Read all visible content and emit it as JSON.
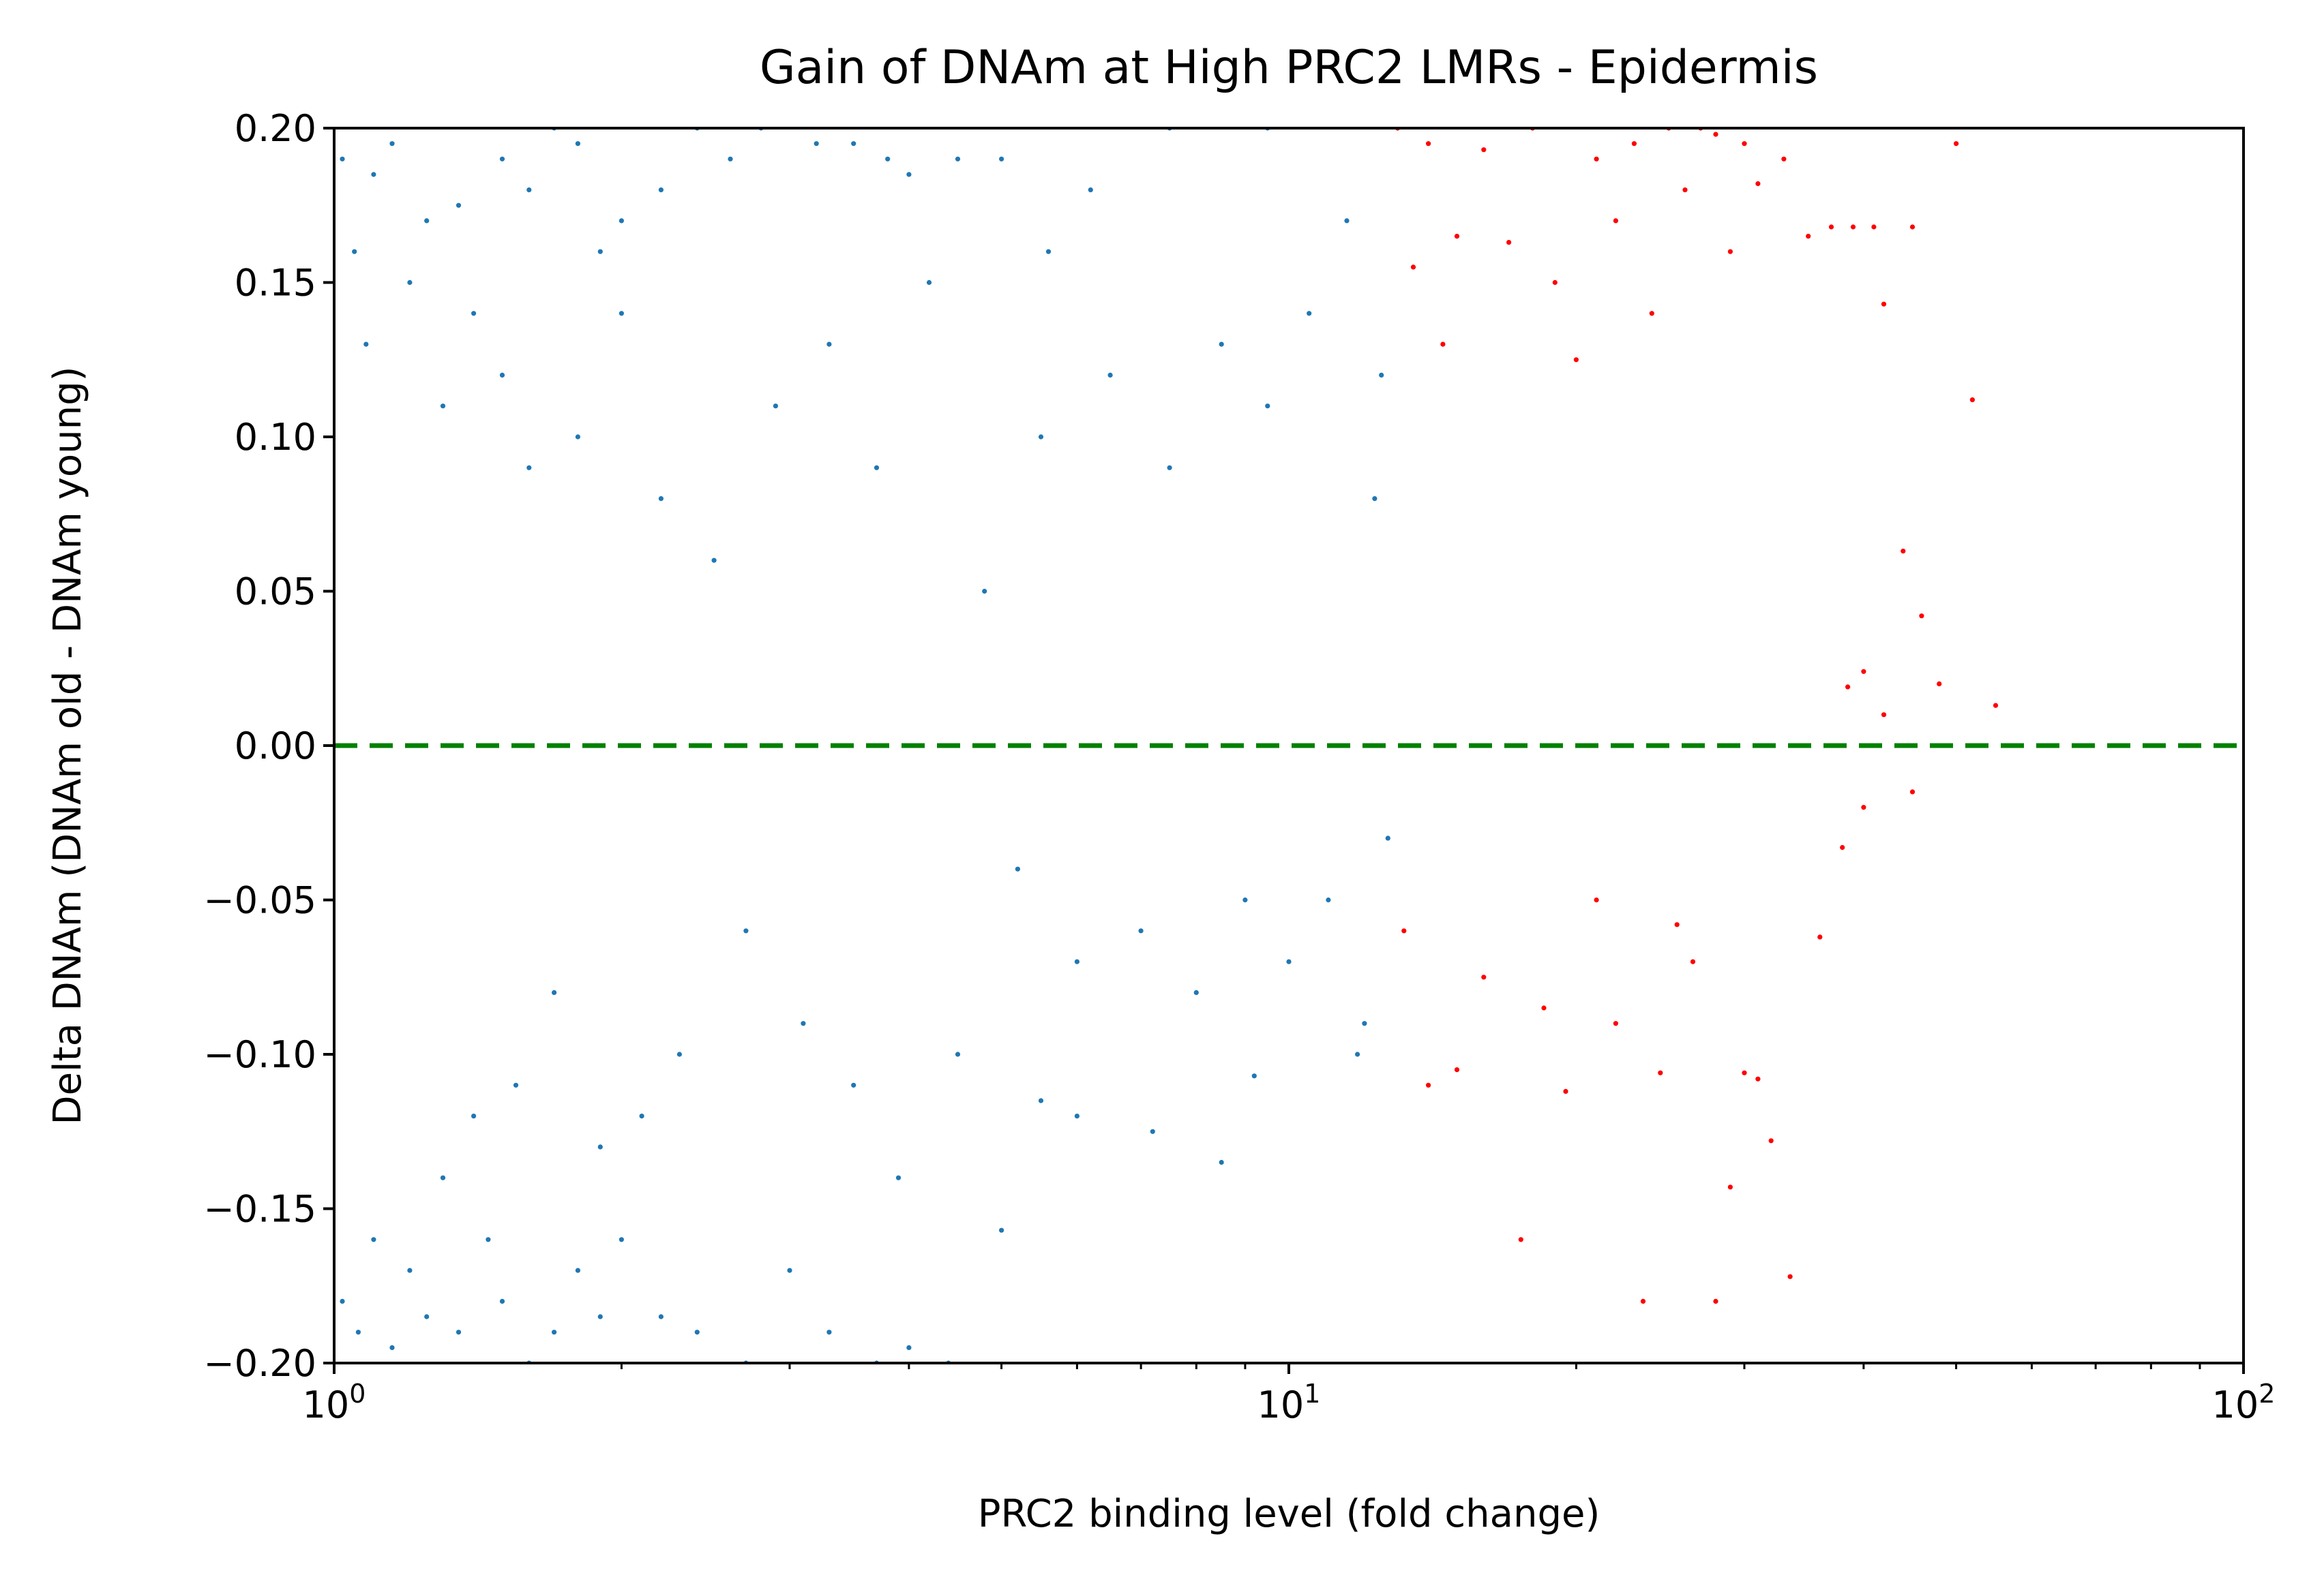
{
  "chart_data": {
    "type": "scatter",
    "title": "Gain of DNAm at High PRC2 LMRs - Epidermis",
    "xlabel": "PRC2 binding level (fold change)",
    "ylabel": "Delta DNAm (DNAm old - DNAm young)",
    "x_scale": "log",
    "xlim": [
      1,
      100
    ],
    "ylim": [
      -0.2,
      0.2
    ],
    "x_ticks": [
      {
        "value": 1,
        "base": "10",
        "exp": "0"
      },
      {
        "value": 10,
        "base": "10",
        "exp": "1"
      },
      {
        "value": 100,
        "base": "10",
        "exp": "2"
      }
    ],
    "y_ticks": [
      {
        "value": 0.2,
        "label": "0.20"
      },
      {
        "value": 0.15,
        "label": "0.15"
      },
      {
        "value": 0.1,
        "label": "0.10"
      },
      {
        "value": 0.05,
        "label": "0.05"
      },
      {
        "value": 0.0,
        "label": "0.00"
      },
      {
        "value": -0.05,
        "label": "−0.05"
      },
      {
        "value": -0.1,
        "label": "−0.10"
      },
      {
        "value": -0.15,
        "label": "−0.15"
      },
      {
        "value": -0.2,
        "label": "−0.20"
      }
    ],
    "grid": false,
    "legend": "none",
    "reference_line": {
      "y": 0.0,
      "style": "dashed",
      "color": "#008000"
    },
    "series": [
      {
        "color": "#1f77b4",
        "x_range": [
          1.0,
          12.8
        ],
        "points": [
          [
            1.02,
            0.19
          ],
          [
            1.05,
            0.16
          ],
          [
            1.08,
            0.13
          ],
          [
            1.1,
            0.185
          ],
          [
            1.15,
            0.195
          ],
          [
            1.2,
            0.15
          ],
          [
            1.25,
            0.17
          ],
          [
            1.3,
            0.11
          ],
          [
            1.35,
            0.175
          ],
          [
            1.4,
            0.14
          ],
          [
            1.02,
            -0.18
          ],
          [
            1.06,
            -0.19
          ],
          [
            1.1,
            -0.16
          ],
          [
            1.15,
            -0.195
          ],
          [
            1.2,
            -0.17
          ],
          [
            1.25,
            -0.185
          ],
          [
            1.3,
            -0.14
          ],
          [
            1.35,
            -0.19
          ],
          [
            1.4,
            -0.12
          ],
          [
            1.45,
            -0.16
          ],
          [
            1.5,
            0.12
          ],
          [
            1.55,
            -0.11
          ],
          [
            1.6,
            0.09
          ],
          [
            1.7,
            -0.08
          ],
          [
            1.8,
            0.1
          ],
          [
            1.9,
            -0.13
          ],
          [
            2.0,
            0.14
          ],
          [
            2.1,
            -0.12
          ],
          [
            2.2,
            0.08
          ],
          [
            2.3,
            -0.1
          ],
          [
            1.5,
            0.19
          ],
          [
            1.6,
            0.18
          ],
          [
            1.7,
            0.2
          ],
          [
            1.8,
            0.195
          ],
          [
            1.9,
            0.16
          ],
          [
            2.0,
            0.17
          ],
          [
            2.2,
            0.18
          ],
          [
            2.4,
            0.2
          ],
          [
            2.6,
            0.19
          ],
          [
            2.8,
            0.2
          ],
          [
            1.5,
            -0.18
          ],
          [
            1.6,
            -0.2
          ],
          [
            1.7,
            -0.19
          ],
          [
            1.8,
            -0.17
          ],
          [
            1.9,
            -0.185
          ],
          [
            2.0,
            -0.16
          ],
          [
            2.2,
            -0.185
          ],
          [
            2.4,
            -0.19
          ],
          [
            2.7,
            -0.2
          ],
          [
            3.0,
            -0.17
          ],
          [
            2.5,
            0.06
          ],
          [
            2.7,
            -0.06
          ],
          [
            2.9,
            0.11
          ],
          [
            3.1,
            -0.09
          ],
          [
            3.3,
            0.13
          ],
          [
            3.5,
            -0.11
          ],
          [
            3.7,
            0.09
          ],
          [
            3.9,
            -0.14
          ],
          [
            4.2,
            0.15
          ],
          [
            4.5,
            -0.1
          ],
          [
            3.2,
            0.195
          ],
          [
            3.5,
            0.195
          ],
          [
            3.8,
            0.19
          ],
          [
            4.0,
            0.185
          ],
          [
            4.5,
            0.19
          ],
          [
            5.0,
            0.19
          ],
          [
            5.6,
            0.16
          ],
          [
            6.2,
            0.18
          ],
          [
            7.5,
            0.2
          ],
          [
            9.5,
            0.2
          ],
          [
            3.3,
            -0.19
          ],
          [
            3.7,
            -0.2
          ],
          [
            4.0,
            -0.195
          ],
          [
            4.4,
            -0.2
          ],
          [
            5.0,
            -0.157
          ],
          [
            5.5,
            -0.115
          ],
          [
            6.0,
            -0.12
          ],
          [
            7.2,
            -0.125
          ],
          [
            8.5,
            -0.135
          ],
          [
            9.2,
            -0.107
          ],
          [
            4.8,
            0.05
          ],
          [
            5.2,
            -0.04
          ],
          [
            5.5,
            0.1
          ],
          [
            6.0,
            -0.07
          ],
          [
            6.5,
            0.12
          ],
          [
            7.0,
            -0.06
          ],
          [
            7.5,
            0.09
          ],
          [
            8.0,
            -0.08
          ],
          [
            8.5,
            0.13
          ],
          [
            9.0,
            -0.05
          ],
          [
            9.5,
            0.11
          ],
          [
            10.0,
            -0.07
          ],
          [
            10.5,
            0.14
          ],
          [
            11.0,
            -0.05
          ],
          [
            11.5,
            0.17
          ],
          [
            12.0,
            -0.09
          ],
          [
            12.5,
            0.12
          ],
          [
            12.7,
            -0.03
          ],
          [
            12.3,
            0.08
          ],
          [
            11.8,
            -0.1
          ]
        ]
      },
      {
        "color": "#ff0000",
        "x_range": [
          12.8,
          55.0
        ],
        "points": [
          [
            13.0,
            0.2
          ],
          [
            13.5,
            0.155
          ],
          [
            14.0,
            0.195
          ],
          [
            14.5,
            0.13
          ],
          [
            15.0,
            0.165
          ],
          [
            16.0,
            0.193
          ],
          [
            17.0,
            0.163
          ],
          [
            18.0,
            0.2
          ],
          [
            19.0,
            0.15
          ],
          [
            20.0,
            0.125
          ],
          [
            21.0,
            0.19
          ],
          [
            22.0,
            0.17
          ],
          [
            23.0,
            0.195
          ],
          [
            24.0,
            0.14
          ],
          [
            25.0,
            0.2
          ],
          [
            26.0,
            0.18
          ],
          [
            27.0,
            0.2
          ],
          [
            28.0,
            0.198
          ],
          [
            29.0,
            0.16
          ],
          [
            30.0,
            0.195
          ],
          [
            31.0,
            0.182
          ],
          [
            33.0,
            0.19
          ],
          [
            35.0,
            0.165
          ],
          [
            37.0,
            0.168
          ],
          [
            39.0,
            0.168
          ],
          [
            41.0,
            0.168
          ],
          [
            42.0,
            0.143
          ],
          [
            45.0,
            0.168
          ],
          [
            50.0,
            0.195
          ],
          [
            52.0,
            0.112
          ],
          [
            13.2,
            -0.06
          ],
          [
            14.0,
            -0.11
          ],
          [
            15.0,
            -0.105
          ],
          [
            16.0,
            -0.075
          ],
          [
            17.5,
            -0.16
          ],
          [
            18.5,
            -0.085
          ],
          [
            19.5,
            -0.112
          ],
          [
            21.0,
            -0.05
          ],
          [
            22.0,
            -0.09
          ],
          [
            23.5,
            -0.18
          ],
          [
            24.5,
            -0.106
          ],
          [
            25.5,
            -0.058
          ],
          [
            26.5,
            -0.07
          ],
          [
            28.0,
            -0.18
          ],
          [
            29.0,
            -0.143
          ],
          [
            30.0,
            -0.106
          ],
          [
            31.0,
            -0.108
          ],
          [
            32.0,
            -0.128
          ],
          [
            33.5,
            -0.172
          ],
          [
            36.0,
            -0.062
          ],
          [
            38.0,
            -0.033
          ],
          [
            40.0,
            -0.02
          ],
          [
            42.0,
            0.01
          ],
          [
            45.0,
            -0.015
          ],
          [
            48.0,
            0.02
          ],
          [
            55.0,
            0.013
          ],
          [
            40.0,
            0.024
          ],
          [
            44.0,
            0.063
          ],
          [
            46.0,
            0.042
          ],
          [
            38.5,
            0.019
          ]
        ]
      }
    ]
  }
}
